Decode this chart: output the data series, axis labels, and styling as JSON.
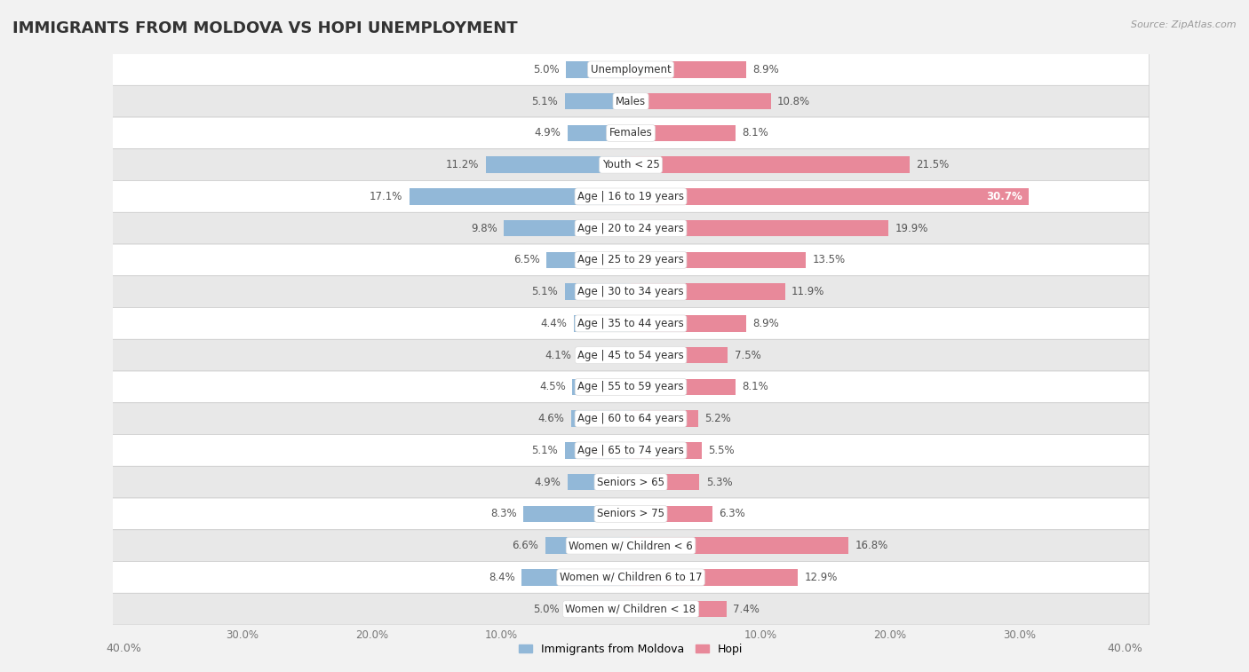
{
  "title": "IMMIGRANTS FROM MOLDOVA VS HOPI UNEMPLOYMENT",
  "source": "Source: ZipAtlas.com",
  "categories": [
    "Unemployment",
    "Males",
    "Females",
    "Youth < 25",
    "Age | 16 to 19 years",
    "Age | 20 to 24 years",
    "Age | 25 to 29 years",
    "Age | 30 to 34 years",
    "Age | 35 to 44 years",
    "Age | 45 to 54 years",
    "Age | 55 to 59 years",
    "Age | 60 to 64 years",
    "Age | 65 to 74 years",
    "Seniors > 65",
    "Seniors > 75",
    "Women w/ Children < 6",
    "Women w/ Children 6 to 17",
    "Women w/ Children < 18"
  ],
  "moldova_values": [
    5.0,
    5.1,
    4.9,
    11.2,
    17.1,
    9.8,
    6.5,
    5.1,
    4.4,
    4.1,
    4.5,
    4.6,
    5.1,
    4.9,
    8.3,
    6.6,
    8.4,
    5.0
  ],
  "hopi_values": [
    8.9,
    10.8,
    8.1,
    21.5,
    30.7,
    19.9,
    13.5,
    11.9,
    8.9,
    7.5,
    8.1,
    5.2,
    5.5,
    5.3,
    6.3,
    16.8,
    12.9,
    7.4
  ],
  "moldova_color": "#92b8d8",
  "hopi_color": "#e8899a",
  "background_color": "#f2f2f2",
  "row_bg_white": "#ffffff",
  "row_bg_gray": "#e8e8e8",
  "axis_limit": 40.0,
  "bar_height": 0.52,
  "legend_moldova": "Immigrants from Moldova",
  "legend_hopi": "Hopi"
}
